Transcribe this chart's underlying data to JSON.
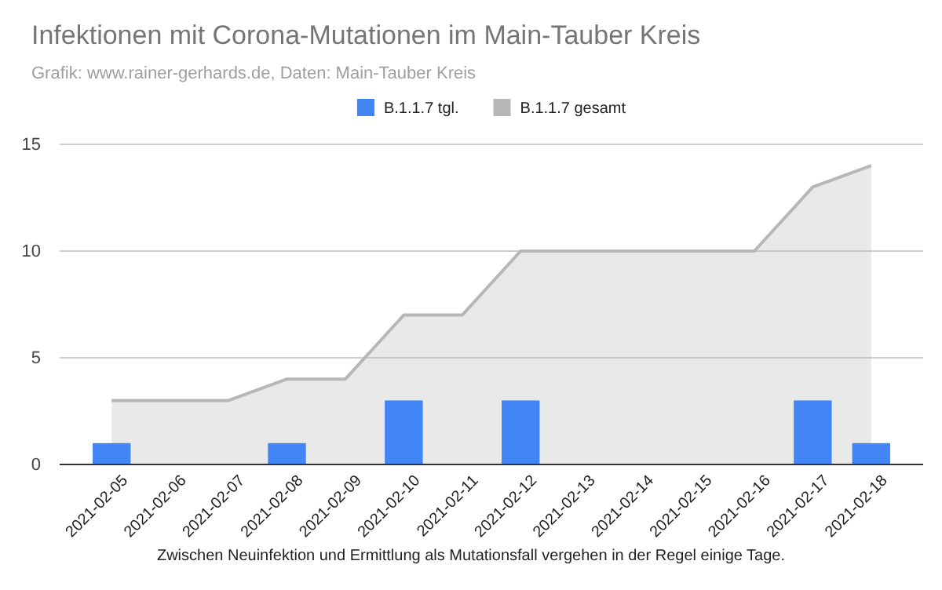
{
  "chart_data": {
    "type": "bar",
    "title": "Infektionen mit Corona-Mutationen im Main-Tauber Kreis",
    "subtitle": "Grafik: www.rainer-gerhards.de, Daten: Main-Tauber Kreis",
    "categories": [
      "2021-02-05",
      "2021-02-06",
      "2021-02-07",
      "2021-02-08",
      "2021-02-09",
      "2021-02-10",
      "2021-02-11",
      "2021-02-12",
      "2021-02-13",
      "2021-02-14",
      "2021-02-15",
      "2021-02-16",
      "2021-02-17",
      "2021-02-18"
    ],
    "series": [
      {
        "name": "B.1.1.7 tgl.",
        "color": "#4285f4",
        "values": [
          1,
          0,
          0,
          1,
          0,
          3,
          0,
          3,
          0,
          0,
          0,
          0,
          3,
          1
        ]
      },
      {
        "name": "B.1.1.7 gesamt",
        "type": "area",
        "color": "#b7b7b7",
        "values": [
          3,
          3,
          3,
          4,
          4,
          7,
          7,
          10,
          10,
          10,
          10,
          10,
          13,
          14
        ]
      }
    ],
    "ylim": [
      0,
      15
    ],
    "yticks": [
      0,
      5,
      10,
      15
    ],
    "grid": "y",
    "legend": "top",
    "annotations": [
      "Zwischen Neuinfektion und Ermittlung als Mutationsfall vergehen in der Regel einige Tage."
    ]
  }
}
